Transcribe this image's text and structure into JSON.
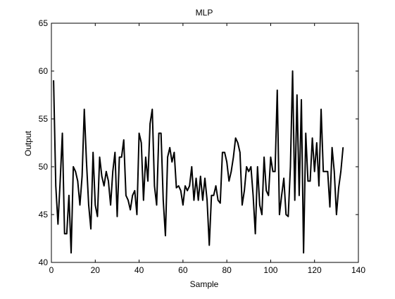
{
  "chart_data": {
    "type": "line",
    "title": "MLP",
    "xlabel": "Sample",
    "ylabel": "Output",
    "xlim": [
      0,
      140
    ],
    "ylim": [
      40,
      65
    ],
    "xticks": [
      0,
      20,
      40,
      60,
      80,
      100,
      120,
      140
    ],
    "yticks": [
      40,
      45,
      50,
      55,
      60,
      65
    ],
    "grid": false,
    "line_color": "#000000",
    "series": [
      {
        "x": [
          1,
          2,
          3,
          4,
          5,
          6,
          7,
          8,
          9,
          10,
          11,
          12,
          13,
          14,
          15,
          16,
          17,
          18,
          19,
          20,
          21,
          22,
          23,
          24,
          25,
          26,
          27,
          28,
          29,
          30,
          31,
          32,
          33,
          34,
          35,
          36,
          37,
          38,
          39,
          40,
          41,
          42,
          43,
          44,
          45,
          46,
          47,
          48,
          49,
          50,
          51,
          52,
          53,
          54,
          55,
          56,
          57,
          58,
          59,
          60,
          61,
          62,
          63,
          64,
          65,
          66,
          67,
          68,
          69,
          70,
          71,
          72,
          73,
          74,
          75,
          76,
          77,
          78,
          79,
          80,
          81,
          82,
          83,
          84,
          85,
          86,
          87,
          88,
          89,
          90,
          91,
          92,
          93,
          94,
          95,
          96,
          97,
          98,
          99,
          100,
          101,
          102,
          103,
          104,
          105,
          106,
          107,
          108,
          109,
          110,
          111,
          112,
          113,
          114,
          115,
          116,
          117,
          118,
          119,
          120,
          121,
          122,
          123,
          124,
          125,
          126,
          127,
          128,
          129,
          130,
          131,
          132,
          133
        ],
        "y": [
          59.0,
          48.0,
          44.0,
          48.5,
          53.5,
          43.0,
          43.0,
          47.0,
          41.0,
          50.0,
          49.5,
          48.5,
          46.0,
          49.0,
          56.0,
          50.5,
          46.0,
          43.5,
          51.5,
          46.0,
          44.8,
          51.0,
          49.0,
          48.0,
          49.5,
          48.5,
          46.0,
          49.5,
          51.5,
          44.8,
          51.0,
          51.0,
          52.8,
          47.0,
          46.5,
          45.5,
          47.0,
          47.5,
          45.0,
          53.5,
          52.5,
          46.5,
          51.0,
          48.5,
          54.5,
          56.0,
          48.0,
          46.0,
          53.5,
          53.5,
          46.5,
          42.8,
          51.0,
          52.0,
          50.5,
          51.5,
          47.8,
          48.0,
          47.5,
          46.0,
          48.0,
          47.5,
          48.0,
          50.0,
          46.5,
          48.8,
          46.5,
          49.0,
          46.5,
          48.8,
          46.5,
          41.8,
          47.0,
          47.0,
          48.0,
          46.5,
          46.2,
          51.5,
          51.5,
          50.5,
          48.5,
          49.5,
          51.0,
          53.0,
          52.5,
          51.5,
          46.0,
          47.5,
          50.0,
          49.5,
          50.0,
          47.0,
          43.0,
          50.0,
          46.0,
          45.0,
          51.0,
          47.5,
          47.0,
          51.0,
          49.5,
          49.5,
          58.0,
          45.0,
          47.0,
          48.8,
          45.0,
          44.8,
          50.0,
          60.0,
          46.5,
          57.5,
          47.0,
          57.0,
          41.0,
          53.5,
          48.5,
          48.5,
          53.0,
          49.5,
          52.5,
          48.0,
          56.0,
          49.5,
          49.5,
          49.5,
          45.8,
          52.0,
          49.5,
          45.0,
          47.8,
          49.5,
          52.0
        ]
      }
    ]
  }
}
